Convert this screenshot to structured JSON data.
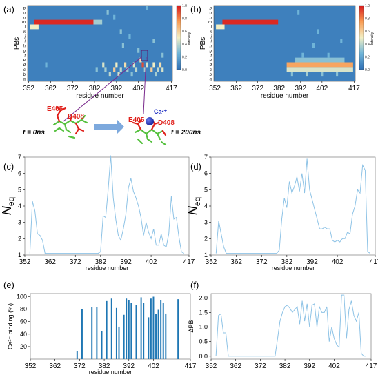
{
  "panel_labels": [
    "(a)",
    "(b)",
    "(c)",
    "(d)",
    "(e)",
    "(f)"
  ],
  "colors": {
    "heatmap_low": "#2e6fb5",
    "heatmap_mid": "#f2efc5",
    "heatmap_high": "#d7191c",
    "line": "#8ec3e6",
    "bar": "#1f77b4",
    "arrow": "#7da9dd",
    "annotation_line": "#7a2a8c",
    "residue_red": "#e0201b",
    "residue_green": "#56c13f",
    "calcium": "#1f2fc2"
  },
  "structure": {
    "left_time": "t = 0ns",
    "right_time": "t = 200ns",
    "left_residues": [
      "E405",
      "D408"
    ],
    "right_residues": [
      "E405",
      "D408"
    ],
    "ion_label": "Ca²⁺"
  },
  "chart_data": [
    {
      "id": "a",
      "type": "heatmap",
      "xlabel": "residue number",
      "ylabel": "PBs",
      "x_ticks": [
        "352",
        "362",
        "372",
        "382",
        "392",
        "402",
        "417"
      ],
      "xlim": [
        352,
        417
      ],
      "y_categories": [
        "a",
        "b",
        "c",
        "d",
        "e",
        "f",
        "g",
        "h",
        "i",
        "j",
        "k",
        "l",
        "m",
        "n",
        "o",
        "p"
      ],
      "colorbar_label": "Intensity",
      "colorbar_ticks": [
        "0.0",
        "0.2",
        "0.4",
        "0.6",
        "0.8",
        "1.0"
      ],
      "colorbar_range": [
        0,
        1
      ],
      "bands": [
        {
          "pb": "m",
          "from": 355,
          "to": 382,
          "intensity": 0.97
        },
        {
          "pb": "m",
          "from": 382,
          "to": 385,
          "intensity": 0.35
        },
        {
          "pb": "l",
          "from": 353,
          "to": 356,
          "intensity": 0.5
        }
      ],
      "cells": [
        {
          "pb": "d",
          "residue": 360,
          "intensity": 0.25
        },
        {
          "pb": "c",
          "residue": 383,
          "intensity": 0.3
        },
        {
          "pb": "d",
          "residue": 386,
          "intensity": 0.45
        },
        {
          "pb": "c",
          "residue": 387,
          "intensity": 0.35
        },
        {
          "pb": "b",
          "residue": 389,
          "intensity": 0.4
        },
        {
          "pb": "c",
          "residue": 391,
          "intensity": 0.6
        },
        {
          "pb": "d",
          "residue": 392,
          "intensity": 0.5
        },
        {
          "pb": "b",
          "residue": 393,
          "intensity": 0.45
        },
        {
          "pb": "c",
          "residue": 394,
          "intensity": 0.4
        },
        {
          "pb": "h",
          "residue": 395,
          "intensity": 0.3
        },
        {
          "pb": "d",
          "residue": 396,
          "intensity": 0.55
        },
        {
          "pb": "c",
          "residue": 397,
          "intensity": 0.35
        },
        {
          "pb": "b",
          "residue": 399,
          "intensity": 0.3
        },
        {
          "pb": "d",
          "residue": 400,
          "intensity": 0.45
        },
        {
          "pb": "c",
          "residue": 401,
          "intensity": 0.4
        },
        {
          "pb": "e",
          "residue": 403,
          "intensity": 0.55
        },
        {
          "pb": "d",
          "residue": 404,
          "intensity": 0.9
        },
        {
          "pb": "c",
          "residue": 405,
          "intensity": 0.35
        },
        {
          "pb": "d",
          "residue": 406,
          "intensity": 0.45
        },
        {
          "pb": "c",
          "residue": 408,
          "intensity": 0.6
        },
        {
          "pb": "d",
          "residue": 409,
          "intensity": 0.5
        },
        {
          "pb": "b",
          "residue": 410,
          "intensity": 0.35
        },
        {
          "pb": "c",
          "residue": 411,
          "intensity": 0.4
        },
        {
          "pb": "d",
          "residue": 412,
          "intensity": 0.55
        },
        {
          "pb": "c",
          "residue": 413,
          "intensity": 0.45
        },
        {
          "pb": "o",
          "residue": 388,
          "intensity": 0.3
        },
        {
          "pb": "n",
          "residue": 391,
          "intensity": 0.25
        },
        {
          "pb": "k",
          "residue": 394,
          "intensity": 0.3
        },
        {
          "pb": "j",
          "residue": 398,
          "intensity": 0.25
        },
        {
          "pb": "g",
          "residue": 402,
          "intensity": 0.3
        },
        {
          "pb": "p",
          "residue": 406,
          "intensity": 0.25
        },
        {
          "pb": "i",
          "residue": 409,
          "intensity": 0.3
        },
        {
          "pb": "f",
          "residue": 413,
          "intensity": 0.3
        }
      ]
    },
    {
      "id": "b",
      "type": "heatmap",
      "xlabel": "residue number",
      "ylabel": "PBs",
      "x_ticks": [
        "352",
        "362",
        "372",
        "382",
        "392",
        "402",
        "417"
      ],
      "xlim": [
        352,
        417
      ],
      "y_categories": [
        "a",
        "b",
        "c",
        "d",
        "e",
        "f",
        "g",
        "h",
        "i",
        "j",
        "k",
        "l",
        "m",
        "n",
        "o",
        "p"
      ],
      "colorbar_label": "Intensity",
      "colorbar_ticks": [
        "0.0",
        "0.2",
        "0.4",
        "0.6",
        "0.8",
        "1.0"
      ],
      "colorbar_range": [
        0,
        1
      ],
      "bands": [
        {
          "pb": "m",
          "from": 356,
          "to": 381,
          "intensity": 0.97
        },
        {
          "pb": "l",
          "from": 353,
          "to": 356,
          "intensity": 0.5
        },
        {
          "pb": "d",
          "from": 386,
          "to": 416,
          "intensity": 0.72
        },
        {
          "pb": "c",
          "from": 386,
          "to": 416,
          "intensity": 0.45
        },
        {
          "pb": "e",
          "from": 390,
          "to": 412,
          "intensity": 0.3
        }
      ],
      "cells": [
        {
          "pb": "b",
          "residue": 388,
          "intensity": 0.3
        },
        {
          "pb": "b",
          "residue": 395,
          "intensity": 0.35
        },
        {
          "pb": "b",
          "residue": 402,
          "intensity": 0.3
        },
        {
          "pb": "b",
          "residue": 409,
          "intensity": 0.3
        },
        {
          "pb": "f",
          "residue": 393,
          "intensity": 0.25
        },
        {
          "pb": "f",
          "residue": 405,
          "intensity": 0.25
        },
        {
          "pb": "h",
          "residue": 398,
          "intensity": 0.25
        },
        {
          "pb": "o",
          "residue": 391,
          "intensity": 0.25
        },
        {
          "pb": "k",
          "residue": 400,
          "intensity": 0.25
        },
        {
          "pb": "i",
          "residue": 411,
          "intensity": 0.25
        }
      ]
    },
    {
      "id": "c",
      "type": "line",
      "xlabel": "residue number",
      "ylabel": "Neq",
      "x_ticks": [
        "352",
        "362",
        "372",
        "382",
        "392",
        "402",
        "417"
      ],
      "xlim": [
        352,
        417
      ],
      "ylim": [
        1,
        7
      ],
      "y_ticks": [
        1,
        2,
        3,
        4,
        5,
        6,
        7
      ],
      "x": [
        354,
        355,
        356,
        357,
        358,
        359,
        360,
        361,
        362,
        363,
        364,
        365,
        366,
        367,
        368,
        369,
        370,
        371,
        372,
        373,
        374,
        375,
        376,
        377,
        378,
        379,
        380,
        381,
        382,
        383,
        384,
        385,
        386,
        387,
        388,
        389,
        390,
        391,
        392,
        393,
        394,
        395,
        396,
        397,
        398,
        399,
        400,
        401,
        402,
        403,
        404,
        405,
        406,
        407,
        408,
        409,
        410,
        411,
        412,
        413,
        414,
        415
      ],
      "y": [
        1.1,
        4.3,
        3.7,
        2.3,
        2.2,
        1.9,
        1.1,
        1.1,
        1.1,
        1.1,
        1.1,
        1.1,
        1.1,
        1.1,
        1.1,
        1.1,
        1.1,
        1.1,
        1.1,
        1.1,
        1.1,
        1.1,
        1.1,
        1.1,
        1.1,
        1.1,
        1.1,
        1.1,
        1.2,
        3.4,
        3.3,
        5.0,
        7.1,
        4.5,
        3.2,
        2.2,
        1.9,
        2.6,
        3.5,
        5.1,
        5.7,
        4.9,
        4.5,
        4.0,
        3.3,
        2.2,
        3.0,
        2.4,
        2.0,
        2.6,
        1.6,
        1.6,
        2.3,
        1.6,
        1.5,
        2.3,
        4.6,
        3.2,
        3.3,
        2.1,
        1.2,
        1.1
      ]
    },
    {
      "id": "d",
      "type": "line",
      "xlabel": "residue number",
      "ylabel": "Neq",
      "x_ticks": [
        "352",
        "362",
        "372",
        "382",
        "392",
        "402",
        "417"
      ],
      "xlim": [
        352,
        417
      ],
      "ylim": [
        1,
        7
      ],
      "y_ticks": [
        1,
        2,
        3,
        4,
        5,
        6,
        7
      ],
      "x": [
        354,
        355,
        356,
        357,
        358,
        359,
        360,
        361,
        362,
        363,
        364,
        365,
        366,
        367,
        368,
        369,
        370,
        371,
        372,
        373,
        374,
        375,
        376,
        377,
        378,
        379,
        380,
        381,
        382,
        383,
        384,
        385,
        386,
        387,
        388,
        389,
        390,
        391,
        392,
        393,
        394,
        395,
        396,
        397,
        398,
        399,
        400,
        401,
        402,
        403,
        404,
        405,
        406,
        407,
        408,
        409,
        410,
        411,
        412,
        413,
        414,
        415
      ],
      "y": [
        1.1,
        3.1,
        2.3,
        1.5,
        1.1,
        1.1,
        1.1,
        1.1,
        1.1,
        1.1,
        1.1,
        1.1,
        1.1,
        1.1,
        1.1,
        1.1,
        1.1,
        1.1,
        1.1,
        1.1,
        1.1,
        1.1,
        1.1,
        1.1,
        1.1,
        1.3,
        3.2,
        4.5,
        3.9,
        5.5,
        4.8,
        5.2,
        5.8,
        4.9,
        6.0,
        4.8,
        6.9,
        5.0,
        4.4,
        3.8,
        3.2,
        2.6,
        2.6,
        2.7,
        2.6,
        2.6,
        1.9,
        1.8,
        1.9,
        1.8,
        2.0,
        2.0,
        2.4,
        2.3,
        3.5,
        4.0,
        5.0,
        4.8,
        6.5,
        6.2,
        1.2,
        1.1
      ]
    },
    {
      "id": "e",
      "type": "bar",
      "xlabel": "residue number",
      "ylabel": "Ca²⁺ binding (%)",
      "x_ticks": [
        "352",
        "362",
        "372",
        "382",
        "392",
        "402",
        "417"
      ],
      "xlim": [
        352,
        417
      ],
      "ylim": [
        0,
        105
      ],
      "y_ticks": [
        20,
        40,
        60,
        80,
        100
      ],
      "x": [
        371,
        373,
        377,
        379,
        381,
        383,
        385,
        387,
        388,
        390,
        391,
        392,
        393,
        395,
        397,
        398,
        400,
        401,
        402,
        403,
        404,
        405,
        406,
        407,
        412
      ],
      "values": [
        13,
        80,
        83,
        83,
        45,
        93,
        97,
        82,
        52,
        71,
        97,
        94,
        90,
        87,
        99,
        90,
        67,
        97,
        100,
        72,
        79,
        95,
        90,
        73,
        96
      ]
    },
    {
      "id": "f",
      "type": "line",
      "xlabel": "",
      "ylabel": "ΔPB",
      "x_ticks": [
        "352",
        "362",
        "372",
        "382",
        "392",
        "402",
        "417"
      ],
      "xlim": [
        352,
        417
      ],
      "ylim": [
        -0.1,
        2.15
      ],
      "y_ticks": [
        "0.0",
        "0.5",
        "1.0",
        "1.5",
        "2.0"
      ],
      "x": [
        354,
        355,
        356,
        357,
        358,
        359,
        360,
        361,
        362,
        363,
        364,
        365,
        366,
        367,
        368,
        369,
        370,
        371,
        372,
        373,
        374,
        375,
        376,
        377,
        378,
        379,
        380,
        381,
        382,
        383,
        384,
        385,
        386,
        387,
        388,
        389,
        390,
        391,
        392,
        393,
        394,
        395,
        396,
        397,
        398,
        399,
        400,
        401,
        402,
        403,
        404,
        405,
        406,
        407,
        408,
        409,
        410,
        411,
        412,
        413,
        414,
        415
      ],
      "y": [
        0.0,
        1.4,
        1.45,
        0.8,
        0.8,
        0.0,
        0.0,
        0.0,
        0.0,
        0.0,
        0.0,
        0.0,
        0.0,
        0.0,
        0.0,
        0.0,
        0.0,
        0.0,
        0.0,
        0.0,
        0.0,
        0.0,
        0.0,
        0.0,
        0.0,
        0.6,
        1.2,
        1.5,
        1.7,
        1.75,
        1.65,
        1.5,
        1.6,
        1.7,
        1.1,
        1.9,
        1.2,
        1.8,
        1.0,
        1.75,
        1.8,
        1.0,
        1.7,
        1.5,
        1.5,
        1.7,
        0.5,
        1.0,
        0.6,
        0.4,
        0.3,
        2.1,
        2.1,
        0.6,
        1.6,
        1.9,
        1.4,
        1.2,
        1.5,
        0.1,
        0.0,
        0.0
      ]
    }
  ]
}
